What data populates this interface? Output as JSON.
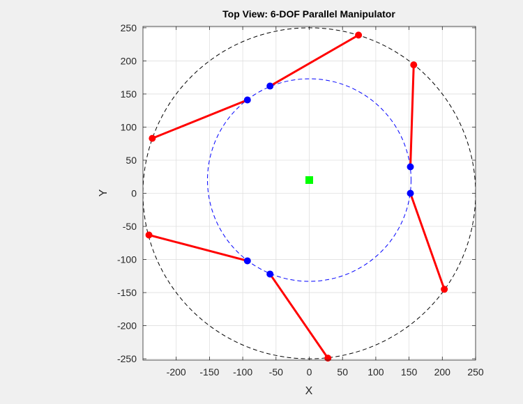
{
  "chart_data": {
    "type": "scatter",
    "title": "Top View: 6-DOF Parallel Manipulator",
    "xlabel": "X",
    "ylabel": "Y",
    "xlim": [
      -250,
      250
    ],
    "ylim": [
      -252,
      252
    ],
    "grid": true,
    "box": true,
    "axis_equal": true,
    "xticks": [
      -200,
      -150,
      -100,
      -50,
      0,
      50,
      100,
      150,
      200,
      250
    ],
    "xtick_labels": [
      "-200",
      "-150",
      "-100",
      "-50",
      "0",
      "50",
      "100",
      "150",
      "200",
      "250"
    ],
    "yticks": [
      250,
      200,
      150,
      100,
      50,
      0,
      -50,
      -100,
      -150,
      -200,
      -250
    ],
    "ytick_labels": [
      "250",
      "200",
      "150",
      "100",
      "50",
      "0",
      "-50",
      "-100",
      "-150",
      "-200",
      "-250"
    ],
    "base_circle": {
      "cx": 0,
      "cy": 0,
      "r": 250,
      "color": "#000000",
      "style": "dashed"
    },
    "platform_circle": {
      "cx": 0,
      "cy": 20,
      "r": 153,
      "color": "#0000ff",
      "style": "dashed"
    },
    "platform_center": {
      "x": 0,
      "y": 20,
      "color": "#00ff00",
      "marker": "square"
    },
    "base_points": [
      {
        "x": 74,
        "y": 239
      },
      {
        "x": 157,
        "y": 194
      },
      {
        "x": 203,
        "y": -145
      },
      {
        "x": 28,
        "y": -249
      },
      {
        "x": -241,
        "y": -63
      },
      {
        "x": -236,
        "y": 83
      }
    ],
    "platform_points": [
      {
        "x": -59,
        "y": 162
      },
      {
        "x": 152,
        "y": 40
      },
      {
        "x": 152,
        "y": 0
      },
      {
        "x": -59,
        "y": -122
      },
      {
        "x": -93,
        "y": -102
      },
      {
        "x": -93,
        "y": 141
      }
    ],
    "legs": [
      {
        "from": 0,
        "to": 0
      },
      {
        "from": 1,
        "to": 1
      },
      {
        "from": 2,
        "to": 2
      },
      {
        "from": 3,
        "to": 3
      },
      {
        "from": 4,
        "to": 4
      },
      {
        "from": 5,
        "to": 5
      }
    ],
    "colors": {
      "base_point": "#ff0000",
      "platform_point": "#0000ff",
      "leg": "#ff0000",
      "grid": "#dfdfdf",
      "axes_bg": "#ffffff",
      "figure_bg": "#f0f0f0"
    }
  }
}
